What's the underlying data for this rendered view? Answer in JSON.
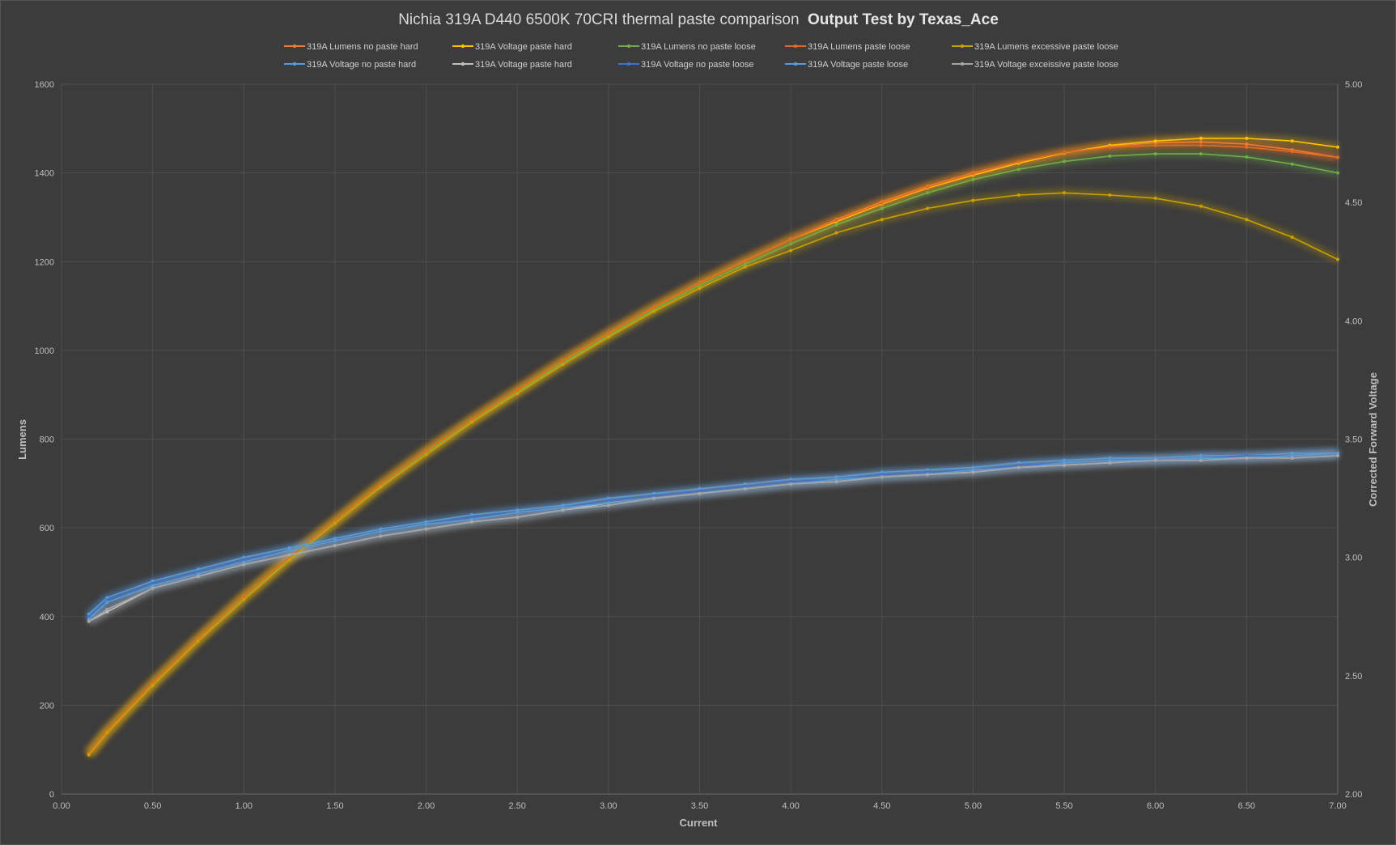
{
  "chart_data": {
    "type": "line",
    "title": "Nichia 319A D440 6500K 70CRI thermal paste comparison",
    "title_bold": "Output Test by Texas_Ace",
    "xlabel": "Current",
    "ylabel": "Lumens",
    "y2label": "Corrected Forward Voltage",
    "xlim": [
      0,
      7
    ],
    "ylim": [
      0,
      1600
    ],
    "y2lim": [
      2.0,
      5.0
    ],
    "x_ticks": [
      "0.00",
      "0.50",
      "1.00",
      "1.50",
      "2.00",
      "2.50",
      "3.00",
      "3.50",
      "4.00",
      "4.50",
      "5.00",
      "5.50",
      "6.00",
      "6.50",
      "7.00"
    ],
    "y_ticks": [
      "0",
      "200",
      "400",
      "600",
      "800",
      "1000",
      "1200",
      "1400",
      "1600"
    ],
    "y2_ticks": [
      "2.00",
      "2.50",
      "3.00",
      "3.50",
      "4.00",
      "4.50",
      "5.00"
    ],
    "grid": true,
    "legend_position": "top",
    "x": [
      0.15,
      0.25,
      0.5,
      0.75,
      1.0,
      1.25,
      1.5,
      1.75,
      2.0,
      2.25,
      2.5,
      2.75,
      3.0,
      3.25,
      3.5,
      3.75,
      4.0,
      4.25,
      4.5,
      4.75,
      5.0,
      5.25,
      5.5,
      5.75,
      6.0,
      6.25,
      6.5,
      6.75,
      7.0
    ],
    "series": [
      {
        "name": "319A Lumens no paste hard",
        "axis": "left",
        "color": "#ed7d31",
        "values": [
          92,
          142,
          250,
          350,
          445,
          533,
          615,
          697,
          773,
          843,
          910,
          976,
          1038,
          1097,
          1152,
          1202,
          1250,
          1295,
          1335,
          1370,
          1400,
          1425,
          1445,
          1460,
          1468,
          1470,
          1465,
          1452,
          1435
        ]
      },
      {
        "name": "319A Voltage paste hard",
        "axis": "left",
        "color": "#ffc000",
        "values": [
          90,
          140,
          248,
          350,
          445,
          533,
          615,
          697,
          773,
          843,
          910,
          976,
          1038,
          1097,
          1152,
          1202,
          1250,
          1290,
          1330,
          1366,
          1395,
          1422,
          1445,
          1462,
          1472,
          1478,
          1478,
          1472,
          1458
        ]
      },
      {
        "name": "319A Lumens no paste loose",
        "axis": "left",
        "color": "#70ad47",
        "values": [
          92,
          142,
          248,
          348,
          443,
          530,
          612,
          694,
          770,
          840,
          906,
          972,
          1033,
          1092,
          1146,
          1194,
          1240,
          1283,
          1320,
          1355,
          1385,
          1408,
          1426,
          1438,
          1443,
          1443,
          1436,
          1420,
          1400
        ]
      },
      {
        "name": "319A Lumens  paste loose",
        "axis": "left",
        "color": "#e26b22",
        "values": [
          92,
          142,
          250,
          350,
          445,
          533,
          615,
          697,
          773,
          843,
          910,
          976,
          1038,
          1097,
          1152,
          1202,
          1250,
          1293,
          1332,
          1368,
          1398,
          1425,
          1446,
          1458,
          1462,
          1462,
          1458,
          1448,
          1435
        ]
      },
      {
        "name": "319A Lumens excessive paste loose",
        "axis": "left",
        "color": "#c9a000",
        "values": [
          88,
          138,
          245,
          345,
          438,
          528,
          610,
          692,
          765,
          838,
          903,
          968,
          1030,
          1088,
          1140,
          1188,
          1225,
          1265,
          1295,
          1320,
          1338,
          1350,
          1355,
          1350,
          1343,
          1325,
          1295,
          1255,
          1205
        ]
      },
      {
        "name": "319A Voltage no paste hard",
        "axis": "right",
        "color": "#5b9bd5",
        "values": [
          2.76,
          2.83,
          2.9,
          2.95,
          3.0,
          3.04,
          3.08,
          3.12,
          3.15,
          3.18,
          3.2,
          3.22,
          3.25,
          3.27,
          3.29,
          3.31,
          3.33,
          3.34,
          3.36,
          3.37,
          3.38,
          3.4,
          3.41,
          3.42,
          3.42,
          3.43,
          3.43,
          3.44,
          3.44
        ]
      },
      {
        "name": "319A Voltage paste hard",
        "axis": "right",
        "color": "#c0c0c0",
        "values": [
          2.73,
          2.77,
          2.87,
          2.92,
          2.97,
          3.01,
          3.05,
          3.09,
          3.12,
          3.15,
          3.17,
          3.2,
          3.23,
          3.25,
          3.27,
          3.29,
          3.31,
          3.32,
          3.34,
          3.35,
          3.36,
          3.38,
          3.39,
          3.4,
          3.41,
          3.42,
          3.42,
          3.43,
          3.44
        ]
      },
      {
        "name": "319A Voltage no paste loose",
        "axis": "right",
        "color": "#4472c4",
        "values": [
          2.75,
          2.82,
          2.89,
          2.94,
          2.99,
          3.03,
          3.07,
          3.11,
          3.14,
          3.17,
          3.19,
          3.21,
          3.24,
          3.26,
          3.28,
          3.3,
          3.32,
          3.33,
          3.35,
          3.36,
          3.37,
          3.39,
          3.4,
          3.41,
          3.41,
          3.42,
          3.43,
          3.43,
          3.44
        ]
      },
      {
        "name": "319A Voltage paste loose",
        "axis": "right",
        "color": "#5b9bd5",
        "values": [
          2.74,
          2.81,
          2.88,
          2.93,
          2.98,
          3.03,
          3.07,
          3.11,
          3.14,
          3.16,
          3.19,
          3.21,
          3.23,
          3.25,
          3.27,
          3.29,
          3.31,
          3.33,
          3.34,
          3.35,
          3.37,
          3.38,
          3.4,
          3.41,
          3.41,
          3.42,
          3.42,
          3.43,
          3.44
        ]
      },
      {
        "name": "319A Voltage exceissive paste loose",
        "axis": "right",
        "color": "#a5a5a5",
        "values": [
          2.73,
          2.78,
          2.87,
          2.92,
          2.97,
          3.01,
          3.05,
          3.09,
          3.12,
          3.15,
          3.17,
          3.2,
          3.22,
          3.25,
          3.27,
          3.29,
          3.31,
          3.32,
          3.34,
          3.35,
          3.36,
          3.38,
          3.39,
          3.4,
          3.41,
          3.41,
          3.42,
          3.42,
          3.43
        ]
      }
    ]
  }
}
